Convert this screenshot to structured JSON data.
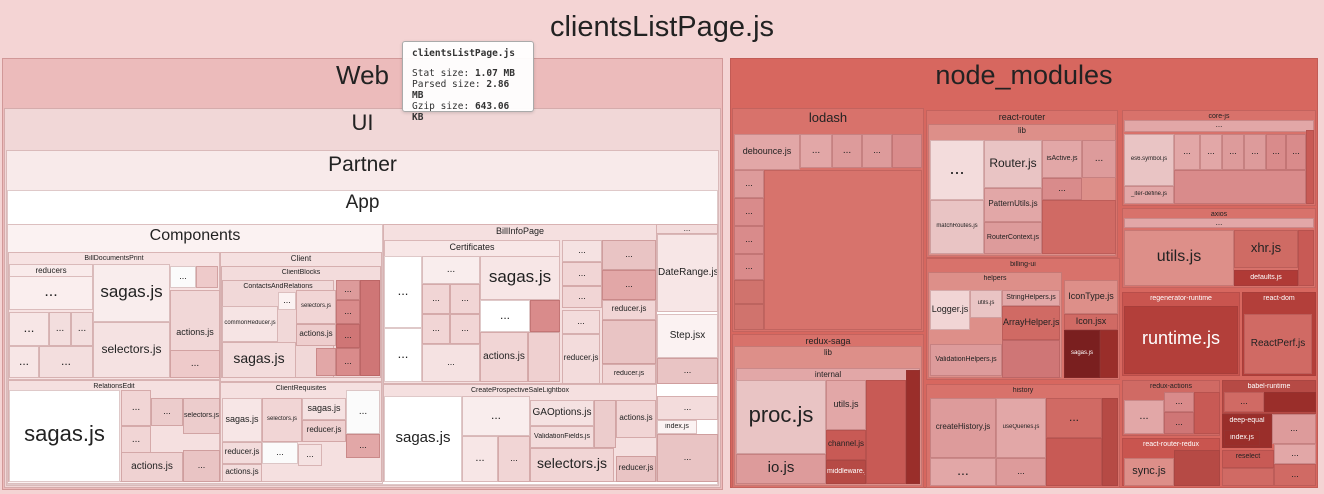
{
  "title": "clientsListPage.js",
  "tooltip": {
    "title": "clientsListPage.js",
    "stat_label": "Stat size:",
    "stat_value": "1.07 MB",
    "parsed_label": "Parsed size:",
    "parsed_value": "2.86 MB",
    "gzip_label": "Gzip size:",
    "gzip_value": "643.06 KB"
  },
  "labels": {
    "web": "Web",
    "ui": "UI",
    "partner": "Partner",
    "app": "App",
    "components": "Components",
    "bill_documents_print": "BillDocumentsPrint",
    "reducers": "reducers",
    "sagas_js": "sagas.js",
    "selectors_js": "selectors.js",
    "actions_js": "actions.js",
    "client": "Client",
    "client_blocks": "ClientBlocks",
    "contacts_and_relations": "ContactsAndRelations",
    "common_reducer_js": "commonReducer.js",
    "relations_edit": "RelationsEdit",
    "client_requisites": "ClientRequisites",
    "reducer_js": "reducer.js",
    "bill_info_page": "BillInfoPage",
    "certificates": "Certificates",
    "date_range_js": "DateRange.js",
    "step_jsx": "Step.jsx",
    "create_prospective_sale_lightbox": "CreateProspectiveSaleLightbox",
    "ga_options_js": "GAOptions.js",
    "validation_fields_js": "ValidationFields.js",
    "index_js": "index.js",
    "node_modules": "node_modules",
    "lodash": "lodash",
    "debounce_js": "debounce.js",
    "react_router": "react-router",
    "lib": "lib",
    "router_js": "Router.js",
    "is_active_js": "isActive.js",
    "pattern_utils_js": "PatternUtils.js",
    "match_routes_js": "matchRoutes.js",
    "router_context_js": "RouterContext.js",
    "core_js": "core-js",
    "es6_symbol_js": "es6.symbol.js",
    "iter_define_js": "_iter-define.js",
    "axios": "axios",
    "utils_js": "utils.js",
    "xhr_js": "xhr.js",
    "defaults_js": "defaults.js",
    "billing_ui": "billing-ui",
    "helpers": "helpers",
    "logger_js": "Logger.js",
    "string_helpers_js": "StringHelpers.js",
    "array_helper_js": "ArrayHelper.js",
    "icon_type_js": "IconType.js",
    "icon_jsx": "Icon.jsx",
    "validation_helpers_js": "ValidationHelpers.js",
    "regenerator_runtime": "regenerator-runtime",
    "runtime_js": "runtime.js",
    "react_dom": "react-dom",
    "react_perf_js": "ReactPerf.js",
    "redux_saga": "redux-saga",
    "internal": "internal",
    "proc_js": "proc.js",
    "io_js": "io.js",
    "channel_js": "channel.js",
    "middleware_js": "middleware.js",
    "history": "history",
    "create_history_js": "createHistory.js",
    "use_queries_js": "useQueries.js",
    "redux_actions": "redux-actions",
    "babel_runtime": "babel-runtime",
    "deep_equal": "deep-equal",
    "react_router_redux": "react-router-redux",
    "sync_js": "sync.js",
    "reselect": "reselect",
    "ellipsis": "..."
  },
  "colors": {
    "background": "#f4d4d4",
    "web": "#ecbbbb",
    "ui": "#f1d7d7",
    "partner": "#f8eaea",
    "app": "#ffffff",
    "node_modules": "#d7675f",
    "dark_red": "#b03a36",
    "darkest_red": "#7a1f1f"
  }
}
